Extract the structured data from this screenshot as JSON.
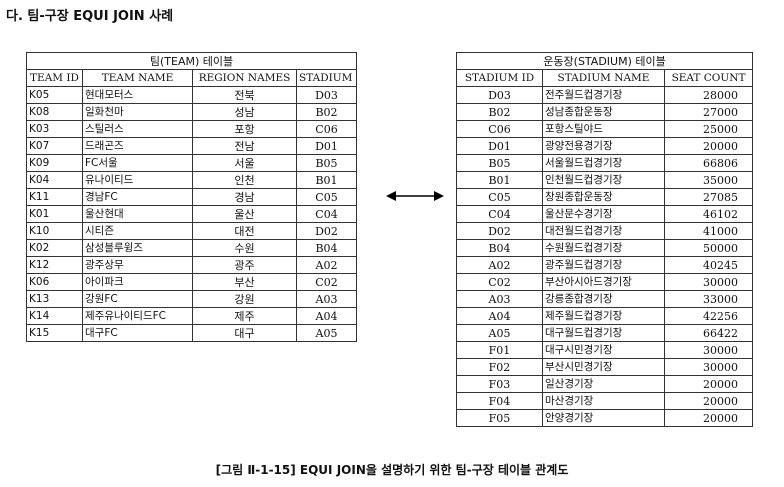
{
  "heading": "다. 팀-구장 EQUI JOIN 사례",
  "team_table": {
    "title": "팀(TEAM) 테이블",
    "columns": [
      "TEAM ID",
      "TEAM NAME",
      "REGION NAMES",
      "STADIUM ID"
    ],
    "rows": [
      [
        "K05",
        "현대모터스",
        "전북",
        "D03"
      ],
      [
        "K08",
        "일화천마",
        "성남",
        "B02"
      ],
      [
        "K03",
        "스틸러스",
        "포항",
        "C06"
      ],
      [
        "K07",
        "드래곤즈",
        "전남",
        "D01"
      ],
      [
        "K09",
        "FC서울",
        "서울",
        "B05"
      ],
      [
        "K04",
        "유나이티드",
        "인천",
        "B01"
      ],
      [
        "K11",
        "경남FC",
        "경남",
        "C05"
      ],
      [
        "K01",
        "울산현대",
        "울산",
        "C04"
      ],
      [
        "K10",
        "시티즌",
        "대전",
        "D02"
      ],
      [
        "K02",
        "삼성블루윙즈",
        "수원",
        "B04"
      ],
      [
        "K12",
        "광주상무",
        "광주",
        "A02"
      ],
      [
        "K06",
        "아이파크",
        "부산",
        "C02"
      ],
      [
        "K13",
        "강원FC",
        "강원",
        "A03"
      ],
      [
        "K14",
        "제주유나이티드FC",
        "제주",
        "A04"
      ],
      [
        "K15",
        "대구FC",
        "대구",
        "A05"
      ]
    ]
  },
  "stadium_table": {
    "title": "운동장(STADIUM) 테이블",
    "columns": [
      "STADIUM ID",
      "STADIUM NAME",
      "SEAT COUNT"
    ],
    "rows": [
      [
        "D03",
        "전주월드컵경기장",
        "28000"
      ],
      [
        "B02",
        "성남종합운동장",
        "27000"
      ],
      [
        "C06",
        "포항스틸야드",
        "25000"
      ],
      [
        "D01",
        "광양전용경기장",
        "20000"
      ],
      [
        "B05",
        "서울월드컵경기장",
        "66806"
      ],
      [
        "B01",
        "인천월드컵경기장",
        "35000"
      ],
      [
        "C05",
        "창원종합운동장",
        "27085"
      ],
      [
        "C04",
        "울산문수경기장",
        "46102"
      ],
      [
        "D02",
        "대전월드컵경기장",
        "41000"
      ],
      [
        "B04",
        "수원월드컵경기장",
        "50000"
      ],
      [
        "A02",
        "광주월드컵경기장",
        "40245"
      ],
      [
        "C02",
        "부산아시아드경기장",
        "30000"
      ],
      [
        "A03",
        "강릉종합경기장",
        "33000"
      ],
      [
        "A04",
        "제주월드컵경기장",
        "42256"
      ],
      [
        "A05",
        "대구월드컵경기장",
        "66422"
      ],
      [
        "F01",
        "대구시민경기장",
        "30000"
      ],
      [
        "F02",
        "부산시민경기장",
        "30000"
      ],
      [
        "F03",
        "일산경기장",
        "20000"
      ],
      [
        "F04",
        "마산경기장",
        "20000"
      ],
      [
        "F05",
        "안양경기장",
        "20000"
      ]
    ]
  },
  "arrow_icon": "double-arrow-icon",
  "caption": "[그림 Ⅱ-1-15] EQUI JOIN을 설명하기 위한 팀-구장 테이블 관계도"
}
